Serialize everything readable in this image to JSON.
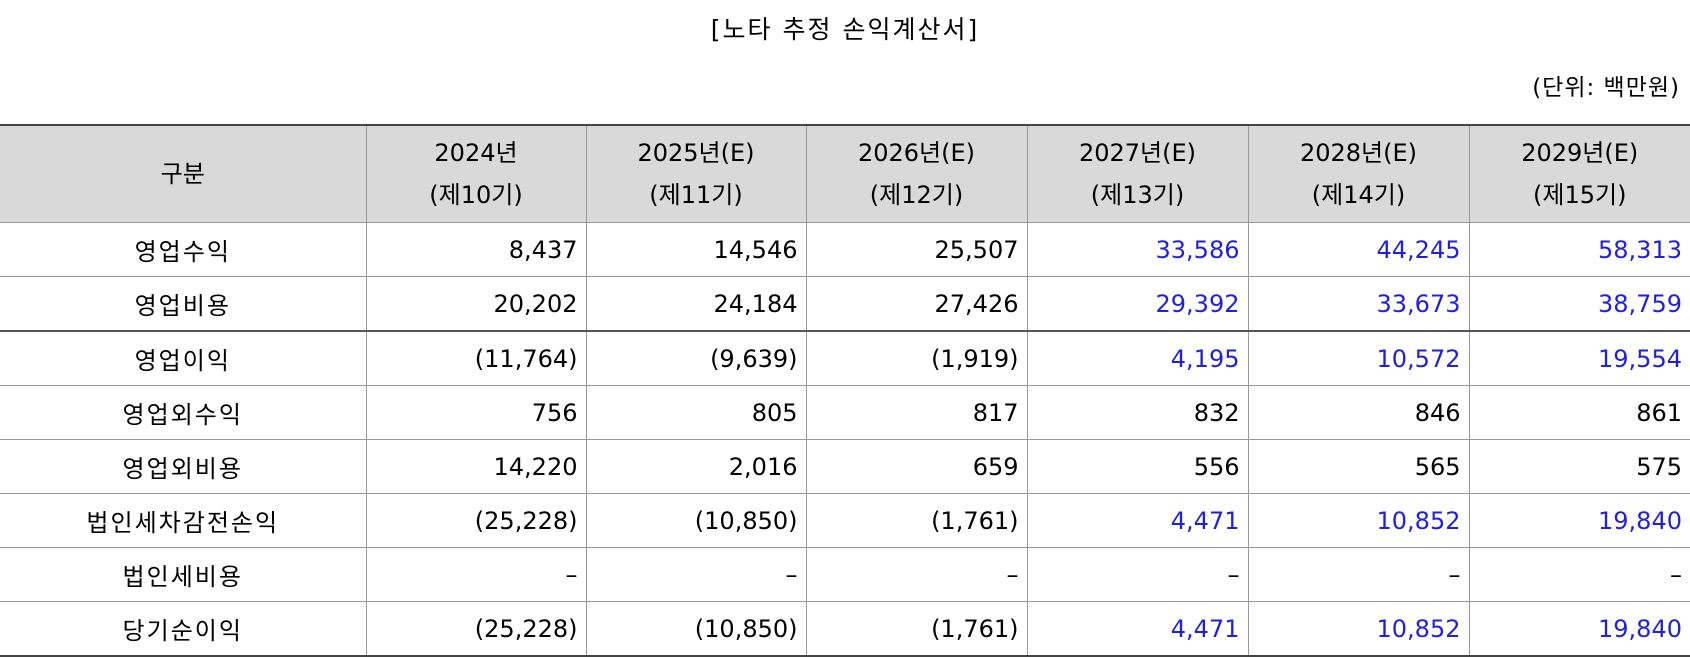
{
  "title": "[노타 추정 손익계산서]",
  "unit": "(단위: 백만원)",
  "header": {
    "category": "구분",
    "columns": [
      {
        "year": "2024년",
        "period": "(제10기)"
      },
      {
        "year": "2025년(E)",
        "period": "(제11기)"
      },
      {
        "year": "2026년(E)",
        "period": "(제12기)"
      },
      {
        "year": "2027년(E)",
        "period": "(제13기)"
      },
      {
        "year": "2028년(E)",
        "period": "(제14기)"
      },
      {
        "year": "2029년(E)",
        "period": "(제15기)"
      }
    ]
  },
  "rows": [
    {
      "label": "영업수익",
      "values": [
        "8,437",
        "14,546",
        "25,507",
        "33,586",
        "44,245",
        "58,313"
      ],
      "highlight": [
        false,
        false,
        false,
        true,
        true,
        true
      ]
    },
    {
      "label": "영업비용",
      "values": [
        "20,202",
        "24,184",
        "27,426",
        "29,392",
        "33,673",
        "38,759"
      ],
      "highlight": [
        false,
        false,
        false,
        true,
        true,
        true
      ]
    },
    {
      "label": "영업이익",
      "values": [
        "(11,764)",
        "(9,639)",
        "(1,919)",
        "4,195",
        "10,572",
        "19,554"
      ],
      "highlight": [
        false,
        false,
        false,
        true,
        true,
        true
      ]
    },
    {
      "label": "영업외수익",
      "values": [
        "756",
        "805",
        "817",
        "832",
        "846",
        "861"
      ],
      "highlight": [
        false,
        false,
        false,
        false,
        false,
        false
      ]
    },
    {
      "label": "영업외비용",
      "values": [
        "14,220",
        "2,016",
        "659",
        "556",
        "565",
        "575"
      ],
      "highlight": [
        false,
        false,
        false,
        false,
        false,
        false
      ]
    },
    {
      "label": "법인세차감전손익",
      "values": [
        "(25,228)",
        "(10,850)",
        "(1,761)",
        "4,471",
        "10,852",
        "19,840"
      ],
      "highlight": [
        false,
        false,
        false,
        true,
        true,
        true
      ]
    },
    {
      "label": "법인세비용",
      "values": [
        "–",
        "–",
        "–",
        "–",
        "–",
        "–"
      ],
      "highlight": [
        false,
        false,
        false,
        false,
        false,
        false
      ]
    },
    {
      "label": "당기순이익",
      "values": [
        "(25,228)",
        "(10,850)",
        "(1,761)",
        "4,471",
        "10,852",
        "19,840"
      ],
      "highlight": [
        false,
        false,
        false,
        true,
        true,
        true
      ]
    }
  ],
  "colors": {
    "projected": "#1f1fe0",
    "header_bg": "#d9d9d9"
  }
}
